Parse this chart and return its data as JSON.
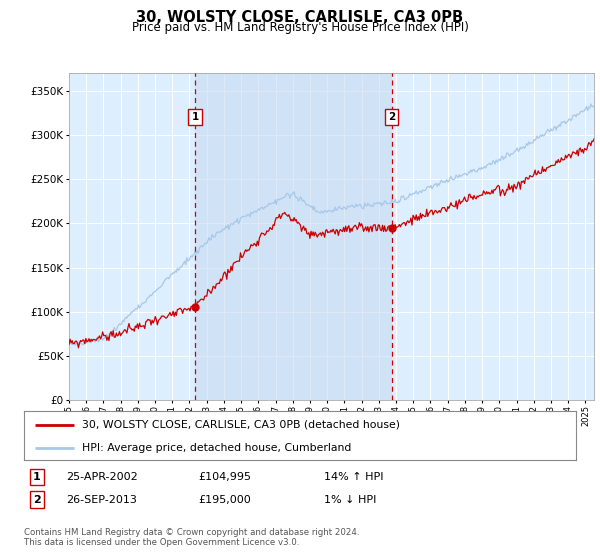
{
  "title": "30, WOLSTY CLOSE, CARLISLE, CA3 0PB",
  "subtitle": "Price paid vs. HM Land Registry's House Price Index (HPI)",
  "legend_line1": "30, WOLSTY CLOSE, CARLISLE, CA3 0PB (detached house)",
  "legend_line2": "HPI: Average price, detached house, Cumberland",
  "footnote": "Contains HM Land Registry data © Crown copyright and database right 2024.\nThis data is licensed under the Open Government Licence v3.0.",
  "sale1_date": "25-APR-2002",
  "sale1_price": "£104,995",
  "sale1_hpi": "14% ↑ HPI",
  "sale2_date": "26-SEP-2013",
  "sale2_price": "£195,000",
  "sale2_hpi": "1% ↓ HPI",
  "sale1_year": 2002.32,
  "sale2_year": 2013.74,
  "sale1_value": 104995,
  "sale2_value": 195000,
  "hpi_color": "#a8c8e8",
  "price_color": "#cc0000",
  "dashed_color": "#cc0000",
  "bg_color": "#ddeeff",
  "shade_color": "#c8dcf0",
  "ylim": [
    0,
    370000
  ],
  "xlim_start": 1995.0,
  "xlim_end": 2025.5
}
